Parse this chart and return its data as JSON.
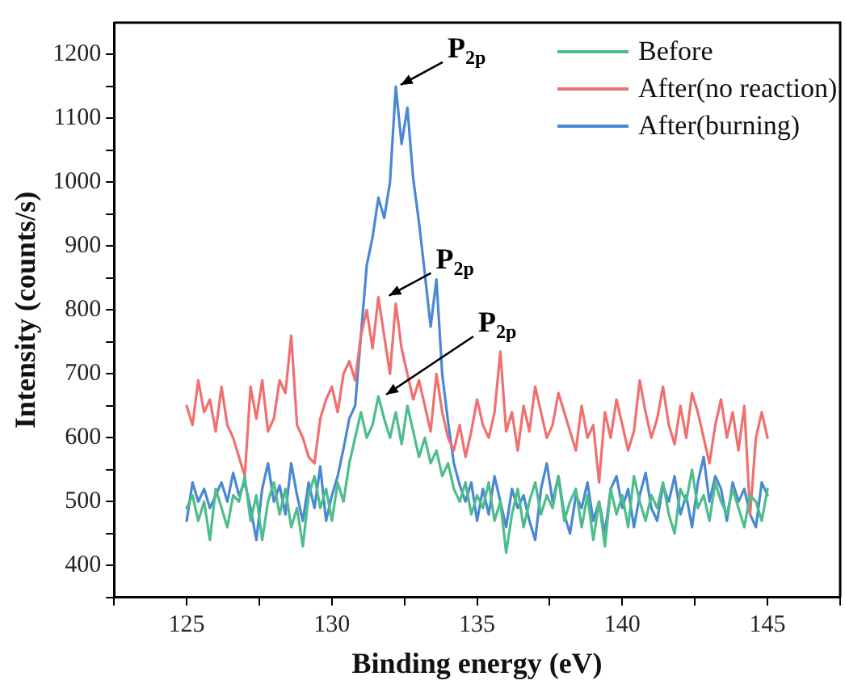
{
  "chart_data": {
    "type": "line",
    "xlabel": "Binding energy (eV)",
    "ylabel": "Intensity (counts/s)",
    "xlim": [
      122.5,
      147.5
    ],
    "ylim": [
      350,
      1250
    ],
    "xticks": [
      {
        "value": 122.5,
        "label": null
      },
      125,
      {
        "value": 127.5,
        "label": null
      },
      130,
      {
        "value": 132.5,
        "label": null
      },
      135,
      {
        "value": 137.5,
        "label": null
      },
      140,
      {
        "value": 142.5,
        "label": null
      },
      145,
      {
        "value": 147.5,
        "label": null
      }
    ],
    "yticks": [
      {
        "value": 350,
        "label": null
      },
      400,
      {
        "value": 450,
        "label": null
      },
      500,
      {
        "value": 550,
        "label": null
      },
      600,
      {
        "value": 650,
        "label": null
      },
      700,
      {
        "value": 750,
        "label": null
      },
      800,
      {
        "value": 850,
        "label": null
      },
      900,
      {
        "value": 950,
        "label": null
      },
      1000,
      {
        "value": 1050,
        "label": null
      },
      1100,
      {
        "value": 1150,
        "label": null
      },
      1200
    ],
    "grid": false,
    "legend": "top right",
    "marker": "none",
    "line_style": "solid",
    "x": [
      125.0,
      125.2,
      125.4,
      125.6,
      125.8,
      126.0,
      126.2,
      126.4,
      126.6,
      126.8,
      127.0,
      127.2,
      127.4,
      127.6,
      127.8,
      128.0,
      128.2,
      128.4,
      128.6,
      128.8,
      129.0,
      129.2,
      129.4,
      129.6,
      129.8,
      130.0,
      130.2,
      130.4,
      130.6,
      130.8,
      131.0,
      131.2,
      131.4,
      131.6,
      131.8,
      132.0,
      132.2,
      132.4,
      132.6,
      132.8,
      133.0,
      133.2,
      133.4,
      133.6,
      133.8,
      134.0,
      134.2,
      134.4,
      134.6,
      134.8,
      135.0,
      135.2,
      135.4,
      135.6,
      135.8,
      136.0,
      136.2,
      136.4,
      136.6,
      136.8,
      137.0,
      137.2,
      137.4,
      137.6,
      137.8,
      138.0,
      138.2,
      138.4,
      138.6,
      138.8,
      139.0,
      139.2,
      139.4,
      139.6,
      139.8,
      140.0,
      140.2,
      140.4,
      140.6,
      140.8,
      141.0,
      141.2,
      141.4,
      141.6,
      141.8,
      142.0,
      142.2,
      142.4,
      142.6,
      142.8,
      143.0,
      143.2,
      143.4,
      143.6,
      143.8,
      144.0,
      144.2,
      144.4,
      144.6,
      144.8,
      145.0
    ],
    "series": [
      {
        "name": "Before",
        "color": "#4dbd8b",
        "values": [
          490,
          510,
          470,
          500,
          440,
          520,
          490,
          460,
          510,
          500,
          540,
          470,
          510,
          440,
          500,
          530,
          480,
          520,
          460,
          490,
          430,
          510,
          540,
          490,
          520,
          470,
          530,
          500,
          560,
          600,
          640,
          600,
          620,
          665,
          630,
          600,
          640,
          590,
          650,
          610,
          570,
          600,
          560,
          580,
          540,
          560,
          520,
          500,
          530,
          480,
          510,
          490,
          530,
          470,
          500,
          420,
          480,
          520,
          460,
          500,
          530,
          480,
          510,
          490,
          540,
          470,
          500,
          520,
          460,
          510,
          440,
          500,
          430,
          520,
          480,
          510,
          460,
          540,
          500,
          470,
          510,
          490,
          530,
          480,
          450,
          520,
          500,
          550,
          490,
          510,
          470,
          530,
          500,
          480,
          520,
          490,
          460,
          510,
          500,
          470,
          520
        ]
      },
      {
        "name": "After(no reaction)",
        "color": "#f07070",
        "values": [
          650,
          620,
          690,
          640,
          660,
          610,
          680,
          620,
          600,
          570,
          540,
          680,
          630,
          690,
          610,
          630,
          690,
          670,
          760,
          620,
          600,
          570,
          560,
          630,
          660,
          680,
          640,
          700,
          720,
          690,
          760,
          800,
          740,
          820,
          760,
          700,
          810,
          740,
          700,
          660,
          690,
          650,
          610,
          700,
          640,
          600,
          580,
          620,
          570,
          610,
          660,
          620,
          600,
          640,
          735,
          610,
          640,
          580,
          650,
          610,
          680,
          640,
          600,
          620,
          670,
          640,
          610,
          580,
          650,
          600,
          620,
          530,
          640,
          600,
          660,
          620,
          580,
          610,
          690,
          640,
          600,
          630,
          680,
          620,
          590,
          650,
          600,
          670,
          640,
          600,
          560,
          620,
          660,
          600,
          640,
          580,
          650,
          480,
          600,
          640,
          600
        ]
      },
      {
        "name": "After(burning)",
        "color": "#4a88d4",
        "values": [
          470,
          530,
          500,
          520,
          490,
          510,
          530,
          500,
          545,
          510,
          530,
          490,
          440,
          520,
          560,
          500,
          525,
          480,
          560,
          510,
          470,
          530,
          490,
          555,
          470,
          510,
          540,
          583,
          630,
          650,
          760,
          870,
          914,
          976,
          944,
          1000,
          1150,
          1060,
          1117,
          1006,
          937,
          857,
          774,
          848,
          699,
          625,
          560,
          526,
          500,
          530,
          470,
          520,
          480,
          540,
          500,
          460,
          520,
          490,
          510,
          470,
          440,
          520,
          560,
          500,
          540,
          480,
          450,
          510,
          490,
          530,
          470,
          500,
          450,
          520,
          540,
          490,
          520,
          460,
          510,
          545,
          490,
          470,
          525,
          500,
          540,
          480,
          510,
          460,
          530,
          570,
          500,
          540,
          520,
          470,
          530,
          500,
          520,
          480,
          460,
          530,
          510
        ]
      }
    ],
    "annotations": [
      {
        "text": "P$_{2p}$",
        "x": 132.2,
        "y": 1150
      },
      {
        "text": "P$_{2p}$",
        "x": 131.8,
        "y": 820
      },
      {
        "text": "P$_{2p}$",
        "x": 131.7,
        "y": 665
      }
    ]
  }
}
